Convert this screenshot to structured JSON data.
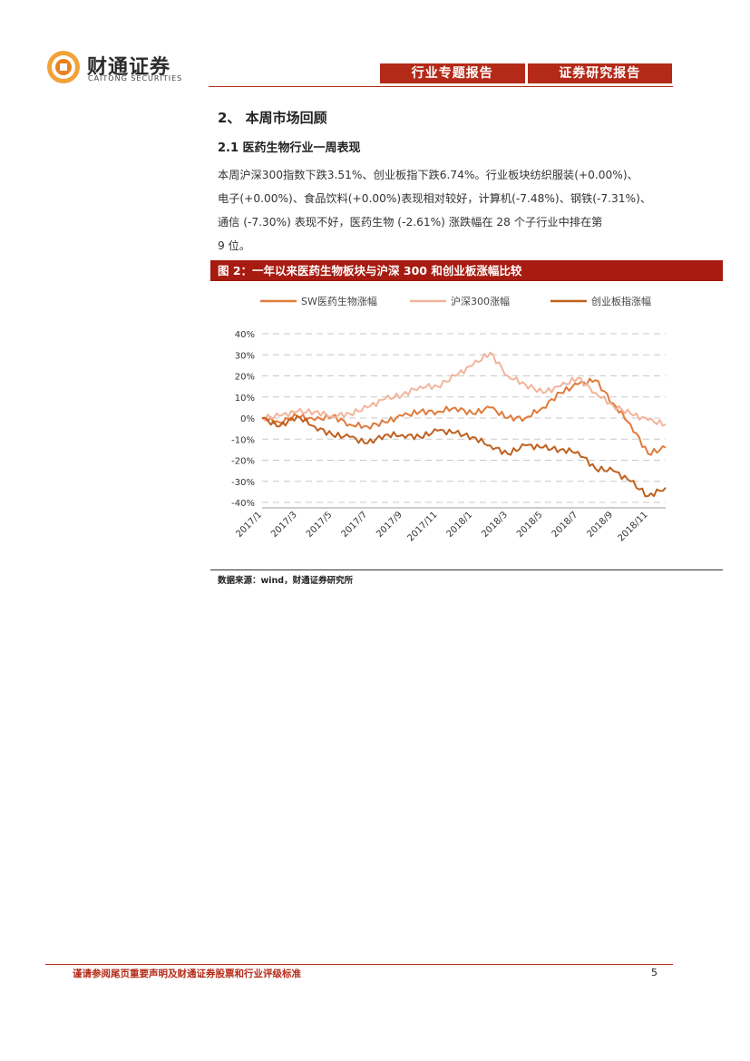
{
  "header": {
    "logo_cn": "财通证券",
    "logo_en": "CAITONG SECURITIES",
    "tags": [
      "行业专题报告",
      "证券研究报告"
    ],
    "accent_color": "#b42a18"
  },
  "section": {
    "heading": "2、 本周市场回顾",
    "subheading": "2.1  医药生物行业一周表现",
    "paragraph_lines": [
      "本周沪深300指数下跌3.51%、创业板指下跌6.74%。行业板块纺织服装(+0.00%)、",
      "电子(+0.00%)、食品饮料(+0.00%)表现相对较好，计算机(-7.48%)、钢铁(-7.31%)、",
      "通信 (-7.30%) 表现不好，医药生物 (-2.61%) 涨跌幅在 28 个子行业中排在第",
      "9 位。"
    ]
  },
  "figure": {
    "title": "图 2：一年以来医药生物板块与沪深 300 和创业板涨幅比较",
    "source": "数据来源：wind，财通证券研究所"
  },
  "chart_data": {
    "type": "line",
    "title": "",
    "xlabel": "",
    "ylabel": "",
    "ylim": [
      -40,
      40
    ],
    "y_ticks": [
      40,
      30,
      20,
      10,
      0,
      -10,
      -20,
      -30,
      -40
    ],
    "y_tick_labels": [
      "40%",
      "30%",
      "20%",
      "10%",
      "0%",
      "-10%",
      "-20%",
      "-30%",
      "-40%"
    ],
    "x": [
      0,
      1,
      2,
      3,
      4,
      5,
      6,
      7,
      8,
      9,
      10,
      11,
      12,
      13,
      14,
      15,
      16,
      17,
      18,
      19,
      20,
      21,
      22,
      23
    ],
    "x_tick_positions": [
      0,
      2,
      4,
      6,
      8,
      10,
      12,
      14,
      16,
      18,
      20,
      22
    ],
    "x_tick_labels": [
      "2017/1",
      "2017/3",
      "2017/5",
      "2017/7",
      "2017/9",
      "2017/11",
      "2018/1",
      "2018/3",
      "2018/5",
      "2018/7",
      "2018/9",
      "2018/11"
    ],
    "legend_position": "top",
    "series": [
      {
        "name": "SW医药生物涨幅",
        "color": "#e07b3c",
        "values": [
          0,
          -2,
          1,
          -1,
          1,
          -3,
          -4,
          -2,
          1,
          3,
          3,
          5,
          2,
          5,
          0,
          0,
          5,
          12,
          16,
          18,
          7,
          -3,
          -17,
          -14
        ]
      },
      {
        "name": "沪深300涨幅",
        "color": "#f2b49c",
        "values": [
          0,
          1,
          3,
          3,
          1,
          2,
          5,
          9,
          11,
          15,
          15,
          20,
          25,
          31,
          20,
          16,
          12,
          15,
          19,
          12,
          6,
          2,
          -1,
          -3
        ]
      },
      {
        "name": "创业板指涨幅",
        "color": "#c0611f",
        "values": [
          0,
          -4,
          1,
          -4,
          -8,
          -9,
          -12,
          -8,
          -8,
          -9,
          -6,
          -7,
          -9,
          -13,
          -17,
          -13,
          -14,
          -15,
          -16,
          -24,
          -25,
          -30,
          -37,
          -33
        ]
      }
    ]
  },
  "footer": {
    "disclaimer": "谨请参阅尾页重要声明及财通证券股票和行业评级标准",
    "page_number": "5"
  }
}
